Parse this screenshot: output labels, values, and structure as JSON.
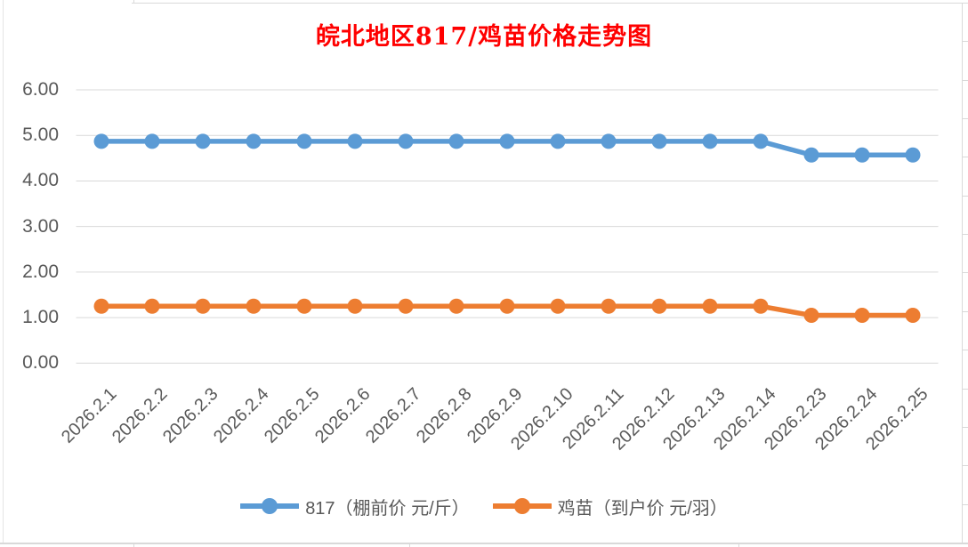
{
  "title": "皖北地区817/鸡苗价格走势图",
  "title_color": "#FF0000",
  "chart_data": {
    "type": "line",
    "title": "皖北地区817/鸡苗价格走势图",
    "categories": [
      "2026.2.1",
      "2026.2.2",
      "2026.2.3",
      "2026.2.4",
      "2026.2.5",
      "2026.2.6",
      "2026.2.7",
      "2026.2.8",
      "2026.2.9",
      "2026.2.10",
      "2026.2.11",
      "2026.2.12",
      "2026.2.13",
      "2026.2.14",
      "2026.2.23",
      "2026.2.24",
      "2026.2.25"
    ],
    "series": [
      {
        "name": "817（棚前价 元/斤）",
        "color": "#5B9BD5",
        "values": [
          4.87,
          4.87,
          4.87,
          4.87,
          4.87,
          4.87,
          4.87,
          4.87,
          4.87,
          4.87,
          4.87,
          4.87,
          4.87,
          4.87,
          4.57,
          4.57,
          4.57
        ]
      },
      {
        "name": "鸡苗（到户价 元/羽）",
        "color": "#ED7D31",
        "values": [
          1.25,
          1.25,
          1.25,
          1.25,
          1.25,
          1.25,
          1.25,
          1.25,
          1.25,
          1.25,
          1.25,
          1.25,
          1.25,
          1.25,
          1.05,
          1.05,
          1.05
        ]
      }
    ],
    "xlabel": "",
    "ylabel": "",
    "ylim": [
      0,
      6
    ],
    "yticks": [
      {
        "value": 0,
        "label": "0.00"
      },
      {
        "value": 1,
        "label": "1.00"
      },
      {
        "value": 2,
        "label": "2.00"
      },
      {
        "value": 3,
        "label": "3.00"
      },
      {
        "value": 4,
        "label": "4.00"
      },
      {
        "value": 5,
        "label": "5.00"
      },
      {
        "value": 6,
        "label": "6.00"
      }
    ],
    "grid": "horizontal",
    "gridline_color": "#D9D9D9",
    "axis_text_color": "#595959",
    "legend_position": "bottom"
  }
}
